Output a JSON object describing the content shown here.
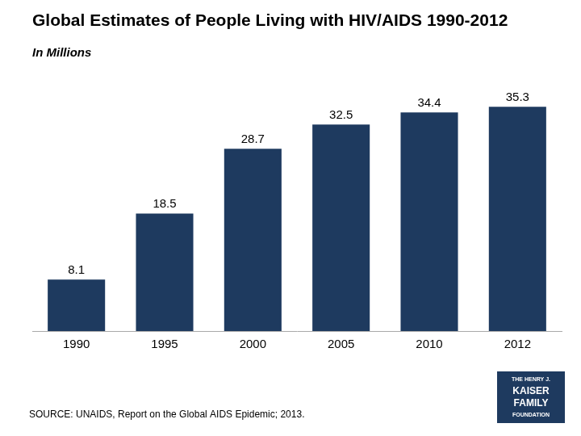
{
  "chart_data": {
    "type": "bar",
    "title": "Global Estimates of People Living with HIV/AIDS 1990-2012",
    "subtitle": "In Millions",
    "categories": [
      "1990",
      "1995",
      "2000",
      "2005",
      "2010",
      "2012"
    ],
    "values": [
      8.1,
      18.5,
      28.7,
      32.5,
      34.4,
      35.3
    ],
    "color": "#1e3a5f",
    "ylim": [
      0,
      40
    ],
    "grid": false,
    "data_labels": true,
    "tick_labels": "x",
    "source": "SOURCE: UNAIDS, Report on the Global AIDS Epidemic; 2013.",
    "logo": [
      "THE HENRY J.",
      "KAISER",
      "FAMILY",
      "FOUNDATION"
    ]
  }
}
